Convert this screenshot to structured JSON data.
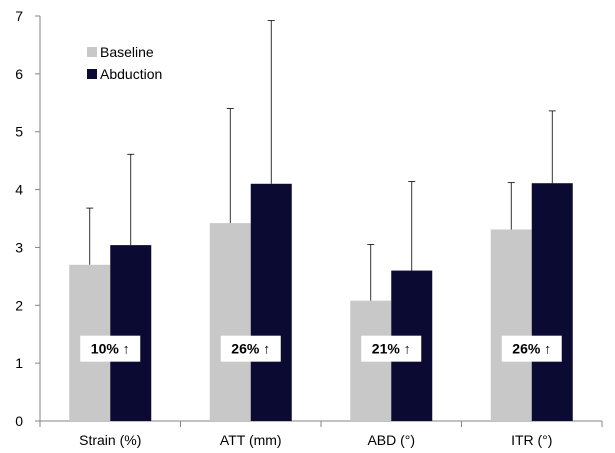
{
  "chart_data": {
    "type": "bar",
    "categories": [
      "Strain (%)",
      "ATT (mm)",
      "ABD (°)",
      "ITR (°)"
    ],
    "series": [
      {
        "name": "Baseline",
        "values": [
          2.7,
          3.42,
          2.08,
          3.31
        ],
        "errors": [
          0.98,
          1.98,
          0.97,
          0.81
        ],
        "color": "#c8c8c8"
      },
      {
        "name": "Abduction",
        "values": [
          3.04,
          4.1,
          2.6,
          4.11
        ],
        "errors": [
          1.57,
          2.82,
          1.54,
          1.25
        ],
        "color": "#0a0a32"
      }
    ],
    "annotations": [
      "10% ↑",
      "26% ↑",
      "21% ↑",
      "26% ↑"
    ],
    "annotation_y": 1.25,
    "ylim": [
      0,
      7
    ],
    "yticks": [
      0,
      1,
      2,
      3,
      4,
      5,
      6,
      7
    ],
    "xlabel": "",
    "ylabel": "",
    "title": "",
    "grid": false,
    "legend_position": "top-left"
  }
}
